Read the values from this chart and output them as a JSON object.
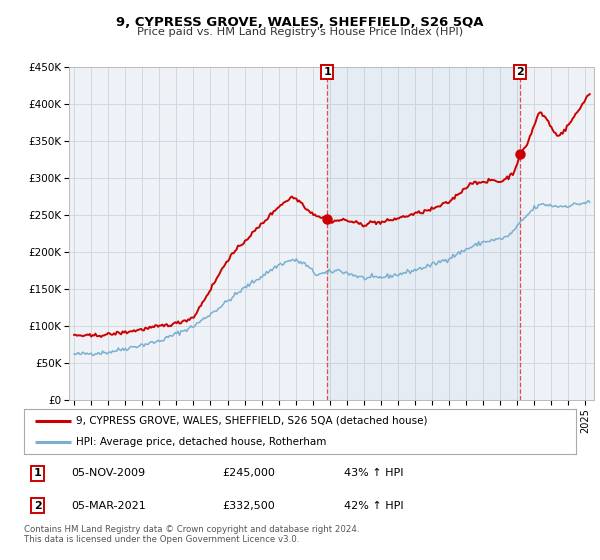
{
  "title": "9, CYPRESS GROVE, WALES, SHEFFIELD, S26 5QA",
  "subtitle": "Price paid vs. HM Land Registry's House Price Index (HPI)",
  "ylim": [
    0,
    450000
  ],
  "yticks": [
    0,
    50000,
    100000,
    150000,
    200000,
    250000,
    300000,
    350000,
    400000,
    450000
  ],
  "ytick_labels": [
    "£0",
    "£50K",
    "£100K",
    "£150K",
    "£200K",
    "£250K",
    "£300K",
    "£350K",
    "£400K",
    "£450K"
  ],
  "xlim_start": 1994.7,
  "xlim_end": 2025.5,
  "property_color": "#cc0000",
  "hpi_color": "#7aafcf",
  "sale1_date": 2009.85,
  "sale1_price": 245000,
  "sale2_date": 2021.17,
  "sale2_price": 332500,
  "legend_property": "9, CYPRESS GROVE, WALES, SHEFFIELD, S26 5QA (detached house)",
  "legend_hpi": "HPI: Average price, detached house, Rotherham",
  "table_row1": [
    "1",
    "05-NOV-2009",
    "£245,000",
    "43% ↑ HPI"
  ],
  "table_row2": [
    "2",
    "05-MAR-2021",
    "£332,500",
    "42% ↑ HPI"
  ],
  "footnote1": "Contains HM Land Registry data © Crown copyright and database right 2024.",
  "footnote2": "This data is licensed under the Open Government Licence v3.0.",
  "background_color": "#ffffff",
  "plot_bg_color": "#eef2f7",
  "grid_color": "#d0d8e0"
}
